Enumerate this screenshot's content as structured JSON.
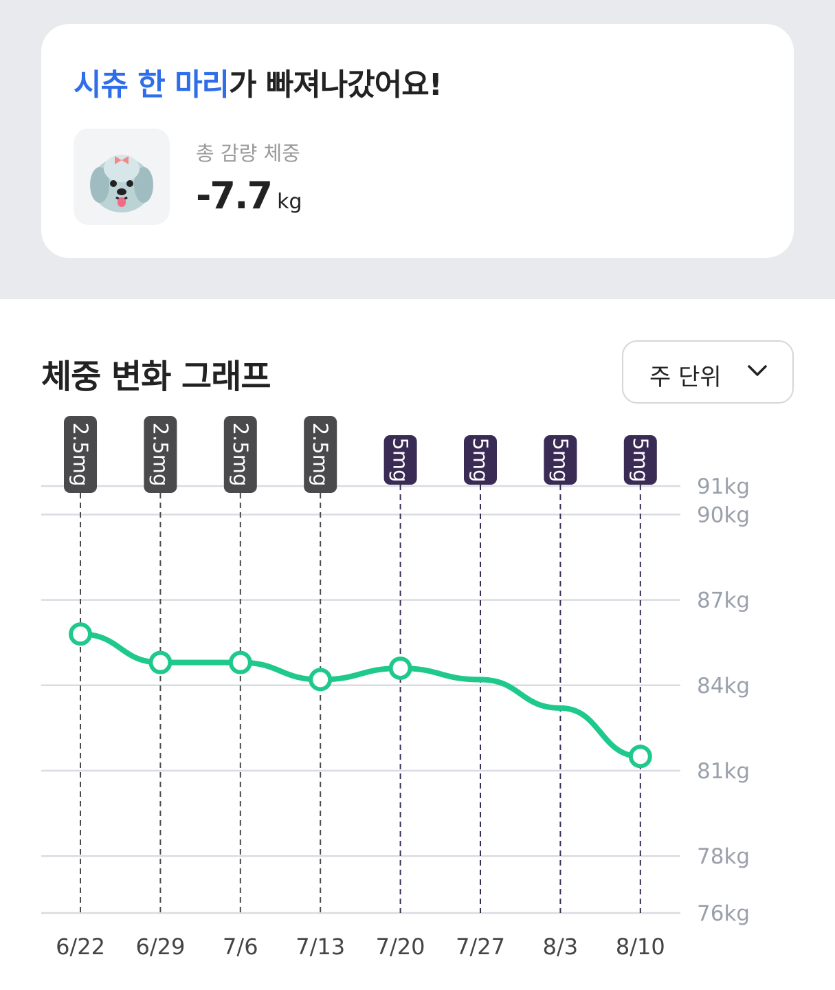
{
  "card": {
    "headline_highlight": "시츄 한 마리",
    "headline_rest": "가 빠져나갔어요!",
    "label": "총 감량 체중",
    "value": "-7.7",
    "unit": "kg"
  },
  "section": {
    "title": "체중 변화 그래프",
    "dropdown": "주 단위"
  },
  "chart_data": {
    "type": "line",
    "categories": [
      "6/22",
      "6/29",
      "7/6",
      "7/13",
      "7/20",
      "7/27",
      "8/3",
      "8/10"
    ],
    "values": [
      85.8,
      84.8,
      84.8,
      84.2,
      84.6,
      84.2,
      83.2,
      81.5
    ],
    "markers": [
      true,
      true,
      true,
      true,
      true,
      false,
      false,
      true
    ],
    "color": "#1ec98b",
    "annotations": [
      "2.5mg",
      "2.5mg",
      "2.5mg",
      "2.5mg",
      "5mg",
      "5mg",
      "5mg",
      "5mg"
    ],
    "annotation_colors": [
      "#4a4a4c",
      "#4a4a4c",
      "#4a4a4c",
      "#4a4a4c",
      "#3a2b55",
      "#3a2b55",
      "#3a2b55",
      "#3a2b55"
    ],
    "ylim": [
      76,
      91
    ],
    "yticks": [
      {
        "value": 76,
        "label": "76kg"
      },
      {
        "value": 78,
        "label": "78kg"
      },
      {
        "value": 81,
        "label": "81kg"
      },
      {
        "value": 84,
        "label": "84kg"
      },
      {
        "value": 87,
        "label": "87kg"
      },
      {
        "value": 90,
        "label": "90kg"
      },
      {
        "value": 91,
        "label": "91kg"
      }
    ],
    "grid": true
  }
}
